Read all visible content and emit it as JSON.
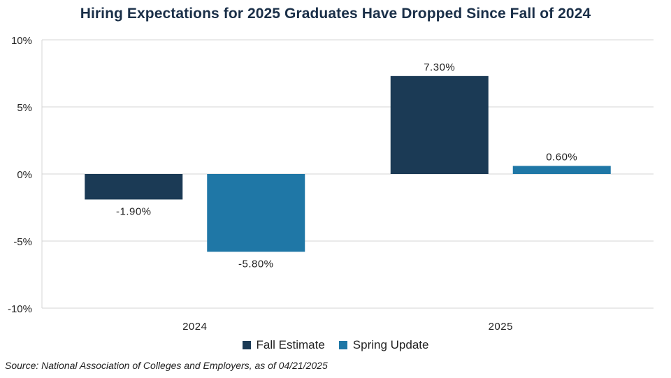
{
  "chart_data": {
    "type": "bar",
    "title": "Hiring Expectations for 2025 Graduates Have Dropped Since Fall of 2024",
    "categories": [
      "2024",
      "2025"
    ],
    "series": [
      {
        "name": "Fall Estimate",
        "color": "#1b3a55",
        "values": [
          -1.9,
          7.3
        ],
        "labels": [
          "-1.90%",
          "7.30%"
        ]
      },
      {
        "name": "Spring Update",
        "color": "#1f77a6",
        "values": [
          -5.8,
          0.6
        ],
        "labels": [
          "-5.80%",
          "0.60%"
        ]
      }
    ],
    "yticks": [
      10,
      5,
      0,
      -5,
      -10
    ],
    "ytick_labels": [
      "10%",
      "5%",
      "0%",
      "-5%",
      "-10%"
    ],
    "ylim": [
      -10,
      10
    ],
    "xlabel": "",
    "ylabel": "",
    "grid": true,
    "legend_position": "bottom-center",
    "source": "Source: National Association of Colleges and Employers, as of 04/21/2025"
  }
}
